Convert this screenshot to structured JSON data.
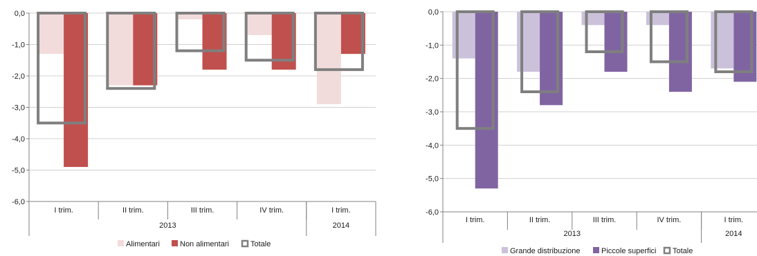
{
  "chart_data": [
    {
      "type": "bar",
      "categories": [
        "I trim.",
        "II trim.",
        "III trim.",
        "IV trim.",
        "I trim."
      ],
      "year_groups": [
        {
          "label": "2013",
          "count": 4
        },
        {
          "label": "2014",
          "count": 1
        }
      ],
      "series": [
        {
          "name": "Alimentari",
          "values": [
            -1.3,
            -2.3,
            -0.2,
            -0.7,
            -2.9
          ],
          "color": "#f2dcdb",
          "kind": "bar"
        },
        {
          "name": "Non alimentari",
          "values": [
            -4.9,
            -2.3,
            -1.8,
            -1.8,
            -1.3
          ],
          "color": "#c0504d",
          "kind": "bar"
        },
        {
          "name": "Totale",
          "values": [
            -3.5,
            -2.4,
            -1.2,
            -1.5,
            -1.8
          ],
          "color": "#7f7f7f",
          "kind": "outline"
        }
      ],
      "ylim": [
        -6.0,
        0.0
      ],
      "yticks": [
        "0,0",
        "-1,0",
        "-2,0",
        "-3,0",
        "-4,0",
        "-5,0",
        "-6,0"
      ],
      "grid": true,
      "legend": "bottom"
    },
    {
      "type": "bar",
      "categories": [
        "I trim.",
        "II trim.",
        "III trim.",
        "IV trim.",
        "I trim."
      ],
      "year_groups": [
        {
          "label": "2013",
          "count": 4
        },
        {
          "label": "2014",
          "count": 1
        }
      ],
      "series": [
        {
          "name": "Grande distribuzione",
          "values": [
            -1.4,
            -1.8,
            -0.4,
            -0.4,
            -1.7
          ],
          "color": "#ccc1da",
          "kind": "bar"
        },
        {
          "name": "Piccole superfici",
          "values": [
            -5.3,
            -2.8,
            -1.8,
            -2.4,
            -2.1
          ],
          "color": "#8064a2",
          "kind": "bar"
        },
        {
          "name": "Totale",
          "values": [
            -3.5,
            -2.4,
            -1.2,
            -1.5,
            -1.8
          ],
          "color": "#7f7f7f",
          "kind": "outline"
        }
      ],
      "ylim": [
        -6.0,
        0.0
      ],
      "yticks": [
        "0,0",
        "-1,0",
        "-2,0",
        "-3,0",
        "-4,0",
        "-5,0",
        "-6,0"
      ],
      "grid": true,
      "legend": "bottom"
    }
  ]
}
